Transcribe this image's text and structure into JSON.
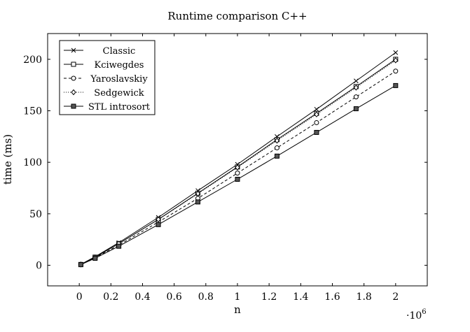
{
  "chart_data": {
    "type": "line",
    "title": "Runtime comparison C++",
    "xlabel": "n",
    "ylabel": "time (ms)",
    "x_multiplier_label": "·10",
    "x_multiplier_exp": "6",
    "xlim": [
      -0.2,
      2.2
    ],
    "ylim": [
      -20,
      225
    ],
    "xticks": [
      0,
      0.2,
      0.4,
      0.6,
      0.8,
      1,
      1.2,
      1.4,
      1.6,
      1.8,
      2
    ],
    "xtick_labels": [
      "0",
      "0.2",
      "0.4",
      "0.6",
      "0.8",
      "1",
      "1.2",
      "1.4",
      "1.6",
      "1.8",
      "2"
    ],
    "yticks": [
      0,
      50,
      100,
      150,
      200
    ],
    "ytick_labels": [
      "0",
      "50",
      "100",
      "150",
      "200"
    ],
    "grid": false,
    "legend_position": "top-left",
    "x": [
      0.01,
      0.1,
      0.25,
      0.5,
      0.75,
      1.0,
      1.25,
      1.5,
      1.75,
      2.0
    ],
    "series": [
      {
        "name": "Classic",
        "marker": "x",
        "dash": "solid",
        "values": [
          0.9,
          8.3,
          22,
          46.5,
          72.5,
          98,
          125,
          151.5,
          179,
          206.5
        ]
      },
      {
        "name": "Kciwegdes",
        "marker": "square-open",
        "dash": "solid",
        "values": [
          0.8,
          7.8,
          21,
          44.5,
          70,
          95.5,
          122,
          147.5,
          173.5,
          200
        ]
      },
      {
        "name": "Yaroslavskiy",
        "marker": "circle-open",
        "dash": "dashed",
        "values": [
          0.7,
          7.3,
          19.5,
          42,
          65,
          89.5,
          114,
          138.5,
          163.5,
          188.5
        ]
      },
      {
        "name": "Sedgewick",
        "marker": "diamond-open",
        "dash": "dotted",
        "values": [
          0.8,
          7.8,
          21,
          44.5,
          69.5,
          95,
          121,
          146.5,
          172.5,
          199
        ]
      },
      {
        "name": "STL introsort",
        "marker": "square-filled",
        "dash": "solid",
        "values": [
          0.6,
          6.8,
          18.5,
          39.5,
          61.5,
          83.5,
          106,
          129,
          152,
          174.5
        ]
      }
    ]
  }
}
